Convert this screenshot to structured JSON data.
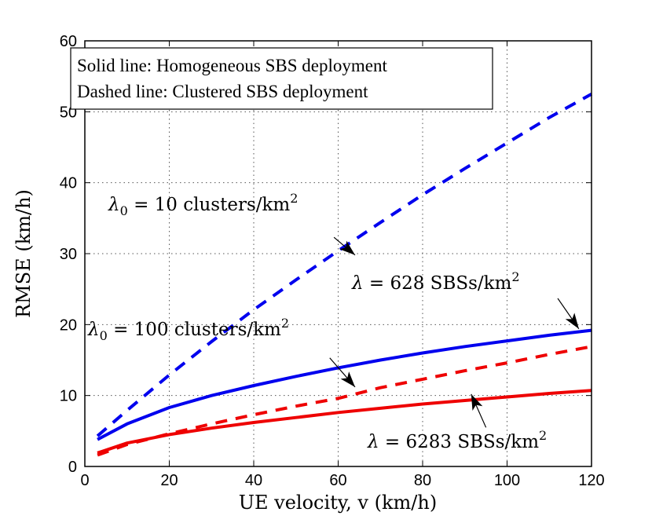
{
  "chart_data": {
    "type": "line",
    "xlabel": "UE velocity, v (km/h)",
    "ylabel": "RMSE (km/h)",
    "xlim": [
      0,
      120
    ],
    "ylim": [
      0,
      60
    ],
    "xticks": [
      0,
      20,
      40,
      60,
      80,
      100,
      120
    ],
    "yticks": [
      0,
      10,
      20,
      30,
      40,
      50,
      60
    ],
    "grid": true,
    "legend_box": {
      "line1": "Solid line: Homogeneous SBS deployment",
      "line2": "Dashed line: Clustered SBS deployment",
      "placement": "top-left"
    },
    "series": [
      {
        "style": "dashed",
        "color": "#0000ee",
        "x": [
          3,
          10,
          20,
          30,
          40,
          50,
          60,
          70,
          80,
          90,
          100,
          110,
          120
        ],
        "y": [
          4.3,
          7.9,
          12.9,
          17.6,
          22.1,
          26.3,
          30.4,
          34.4,
          38.3,
          42.0,
          45.6,
          49.2,
          52.5
        ]
      },
      {
        "style": "solid",
        "color": "#0000ee",
        "x": [
          3,
          10,
          20,
          30,
          40,
          50,
          60,
          70,
          80,
          90,
          100,
          110,
          120
        ],
        "y": [
          3.8,
          6.0,
          8.3,
          10.0,
          11.4,
          12.7,
          13.9,
          15.0,
          16.0,
          16.9,
          17.7,
          18.5,
          19.2
        ]
      },
      {
        "style": "dashed",
        "color": "#ee0000",
        "x": [
          3,
          10,
          20,
          30,
          40,
          50,
          60,
          70,
          80,
          90,
          100,
          110,
          120
        ],
        "y": [
          1.6,
          3.1,
          4.6,
          6.0,
          7.3,
          8.5,
          9.6,
          11.1,
          12.3,
          13.5,
          14.6,
          15.8,
          16.9
        ]
      },
      {
        "style": "solid",
        "color": "#ee0000",
        "x": [
          3,
          10,
          20,
          30,
          40,
          50,
          60,
          70,
          80,
          90,
          100,
          110,
          120
        ],
        "y": [
          1.9,
          3.3,
          4.5,
          5.4,
          6.2,
          6.9,
          7.6,
          8.2,
          8.8,
          9.3,
          9.8,
          10.3,
          10.7
        ]
      }
    ],
    "annotations": [
      {
        "base": "λ",
        "sub": "0",
        "middle": " = 10 clusters/km",
        "sup": "2",
        "arrow_from": [
          59,
          32.3
        ],
        "arrow_to": [
          64,
          29.8
        ]
      },
      {
        "base": "λ",
        "sub": "",
        "middle": " = 628 SBSs/km",
        "sup": "2",
        "arrow_from": [
          112,
          23.7
        ],
        "arrow_to": [
          117,
          19.4
        ]
      },
      {
        "base": "λ",
        "sub": "0",
        "middle": " = 100 clusters/km",
        "sup": "2",
        "arrow_from": [
          58,
          15.3
        ],
        "arrow_to": [
          64,
          11.2
        ]
      },
      {
        "base": "λ",
        "sub": "",
        "middle": " = 6283 SBSs/km",
        "sup": "2",
        "arrow_from": [
          95,
          5.5
        ],
        "arrow_to": [
          91.5,
          10.2
        ]
      }
    ]
  }
}
